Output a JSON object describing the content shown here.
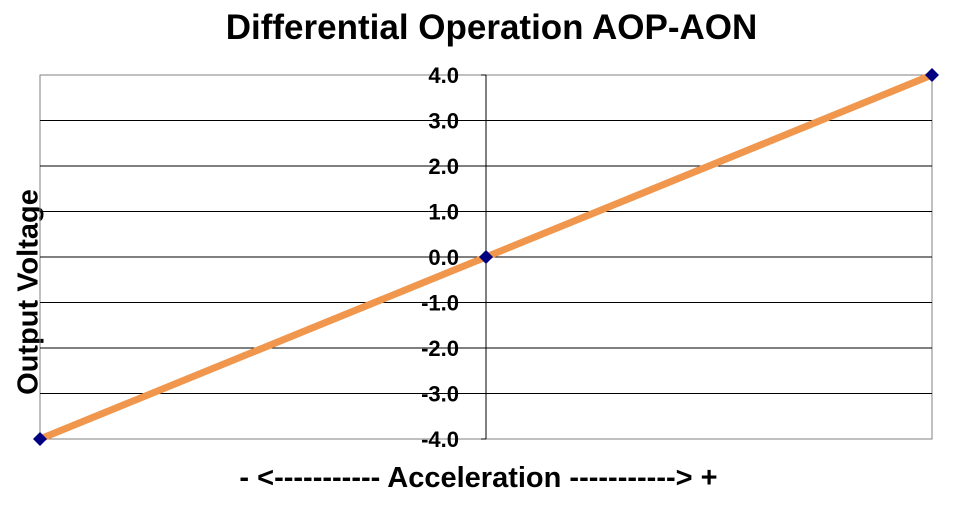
{
  "chart_data": {
    "type": "line",
    "title": "Differential Operation AOP-AON",
    "ylabel": "Output Voltage",
    "xlabel": "-  <----------- Acceleration -----------> +",
    "x": [
      -1,
      0,
      1
    ],
    "series": [
      {
        "values": [
          -4.0,
          0.0,
          4.0
        ],
        "line_color": "#f0964d",
        "marker_color": "#000080",
        "marker": "diamond"
      }
    ],
    "ylim": [
      -4.0,
      4.0
    ],
    "xlim": [
      -1,
      1
    ],
    "yticks": [
      "4.0",
      "3.0",
      "2.0",
      "1.0",
      "0.0",
      "-1.0",
      "-2.0",
      "-3.0",
      "-4.0"
    ],
    "grid": true
  }
}
